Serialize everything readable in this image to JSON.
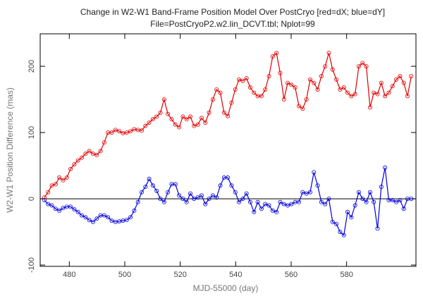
{
  "chart_data": {
    "type": "line",
    "title": "Change in W2-W1 Band-Frame Position Model Over PostCryo [red=dX; blue=dY]",
    "subtitle": "File=PostCryoP2.w2.lin_DCVT.tbl; Nplot=99",
    "x_label": "MJD-55000 (day)",
    "y_label": "W2-W1 Position Difference (mas)",
    "x": [
      471,
      472.35,
      473.7,
      475.05,
      476.4,
      477.75,
      479.1,
      480.45,
      481.8,
      483.15,
      484.5,
      485.85,
      487.2,
      488.55,
      489.9,
      491.25,
      492.6,
      493.95,
      495.3,
      496.65,
      498,
      499.35,
      500.7,
      502.05,
      503.4,
      504.75,
      506.1,
      507.45,
      508.8,
      510.15,
      511.5,
      512.85,
      514.2,
      515.55,
      516.9,
      518.25,
      519.6,
      520.95,
      522.3,
      523.65,
      525,
      526.35,
      527.7,
      529.05,
      530.4,
      531.75,
      533.1,
      534.45,
      535.8,
      537.15,
      538.5,
      539.85,
      541.2,
      542.55,
      543.9,
      545.25,
      546.6,
      547.95,
      549.3,
      550.65,
      552,
      553.35,
      554.7,
      556.05,
      557.4,
      558.75,
      560.1,
      561.45,
      562.8,
      564.15,
      565.5,
      566.85,
      568.2,
      569.55,
      570.9,
      572.25,
      573.6,
      574.95,
      576.3,
      577.65,
      579,
      580.35,
      581.7,
      583.05,
      584.4,
      585.75,
      587.1,
      588.45,
      589.8,
      591.15,
      592.5,
      593.85,
      595.2,
      596.55,
      597.9,
      599.25,
      600.6,
      601.95,
      603.3
    ],
    "series": [
      {
        "name": "dX",
        "color": "#e00000",
        "values": [
          2,
          10,
          20,
          22,
          32,
          28,
          32,
          45,
          52,
          58,
          62,
          68,
          72,
          68,
          66,
          72,
          85,
          100,
          100,
          104,
          102,
          99,
          100,
          102,
          105,
          104,
          103,
          110,
          115,
          120,
          124,
          130,
          150,
          128,
          120,
          112,
          108,
          124,
          120,
          124,
          110,
          112,
          122,
          115,
          130,
          150,
          165,
          160,
          130,
          125,
          145,
          165,
          180,
          178,
          182,
          168,
          160,
          155,
          155,
          165,
          185,
          215,
          220,
          190,
          150,
          175,
          172,
          168,
          140,
          136,
          150,
          180,
          175,
          165,
          185,
          200,
          220,
          195,
          180,
          165,
          168,
          160,
          155,
          158,
          200,
          205,
          200,
          138,
          160,
          158,
          175,
          155,
          160,
          170,
          180,
          185,
          175,
          155,
          185
        ]
      },
      {
        "name": "dY",
        "color": "#0000e0",
        "values": [
          -2,
          -8,
          -10,
          -15,
          -18,
          -14,
          -12,
          -12,
          -16,
          -20,
          -25,
          -28,
          -32,
          -35,
          -30,
          -25,
          -25,
          -28,
          -33,
          -35,
          -34,
          -33,
          -32,
          -28,
          -18,
          -5,
          10,
          18,
          30,
          20,
          12,
          0,
          -5,
          10,
          22,
          22,
          5,
          0,
          -5,
          8,
          0,
          2,
          5,
          -8,
          0,
          5,
          2,
          20,
          32,
          32,
          20,
          10,
          -5,
          0,
          8,
          -5,
          -20,
          -5,
          -15,
          -8,
          -10,
          -18,
          -20,
          -5,
          -8,
          -10,
          -8,
          -5,
          -5,
          10,
          8,
          10,
          40,
          20,
          -5,
          -8,
          0,
          -35,
          -38,
          -50,
          -55,
          -20,
          -28,
          -10,
          10,
          0,
          -5,
          10,
          -5,
          -45,
          18,
          47,
          -2,
          -2,
          -5,
          -2,
          -15,
          0,
          0
        ]
      }
    ],
    "xlim": [
      469.5,
      605
    ],
    "xticks": [
      480,
      500,
      520,
      540,
      560,
      580
    ],
    "ylim": [
      -102,
      249
    ],
    "yticks": [
      -100,
      0,
      100,
      200
    ],
    "zero_line": true
  }
}
